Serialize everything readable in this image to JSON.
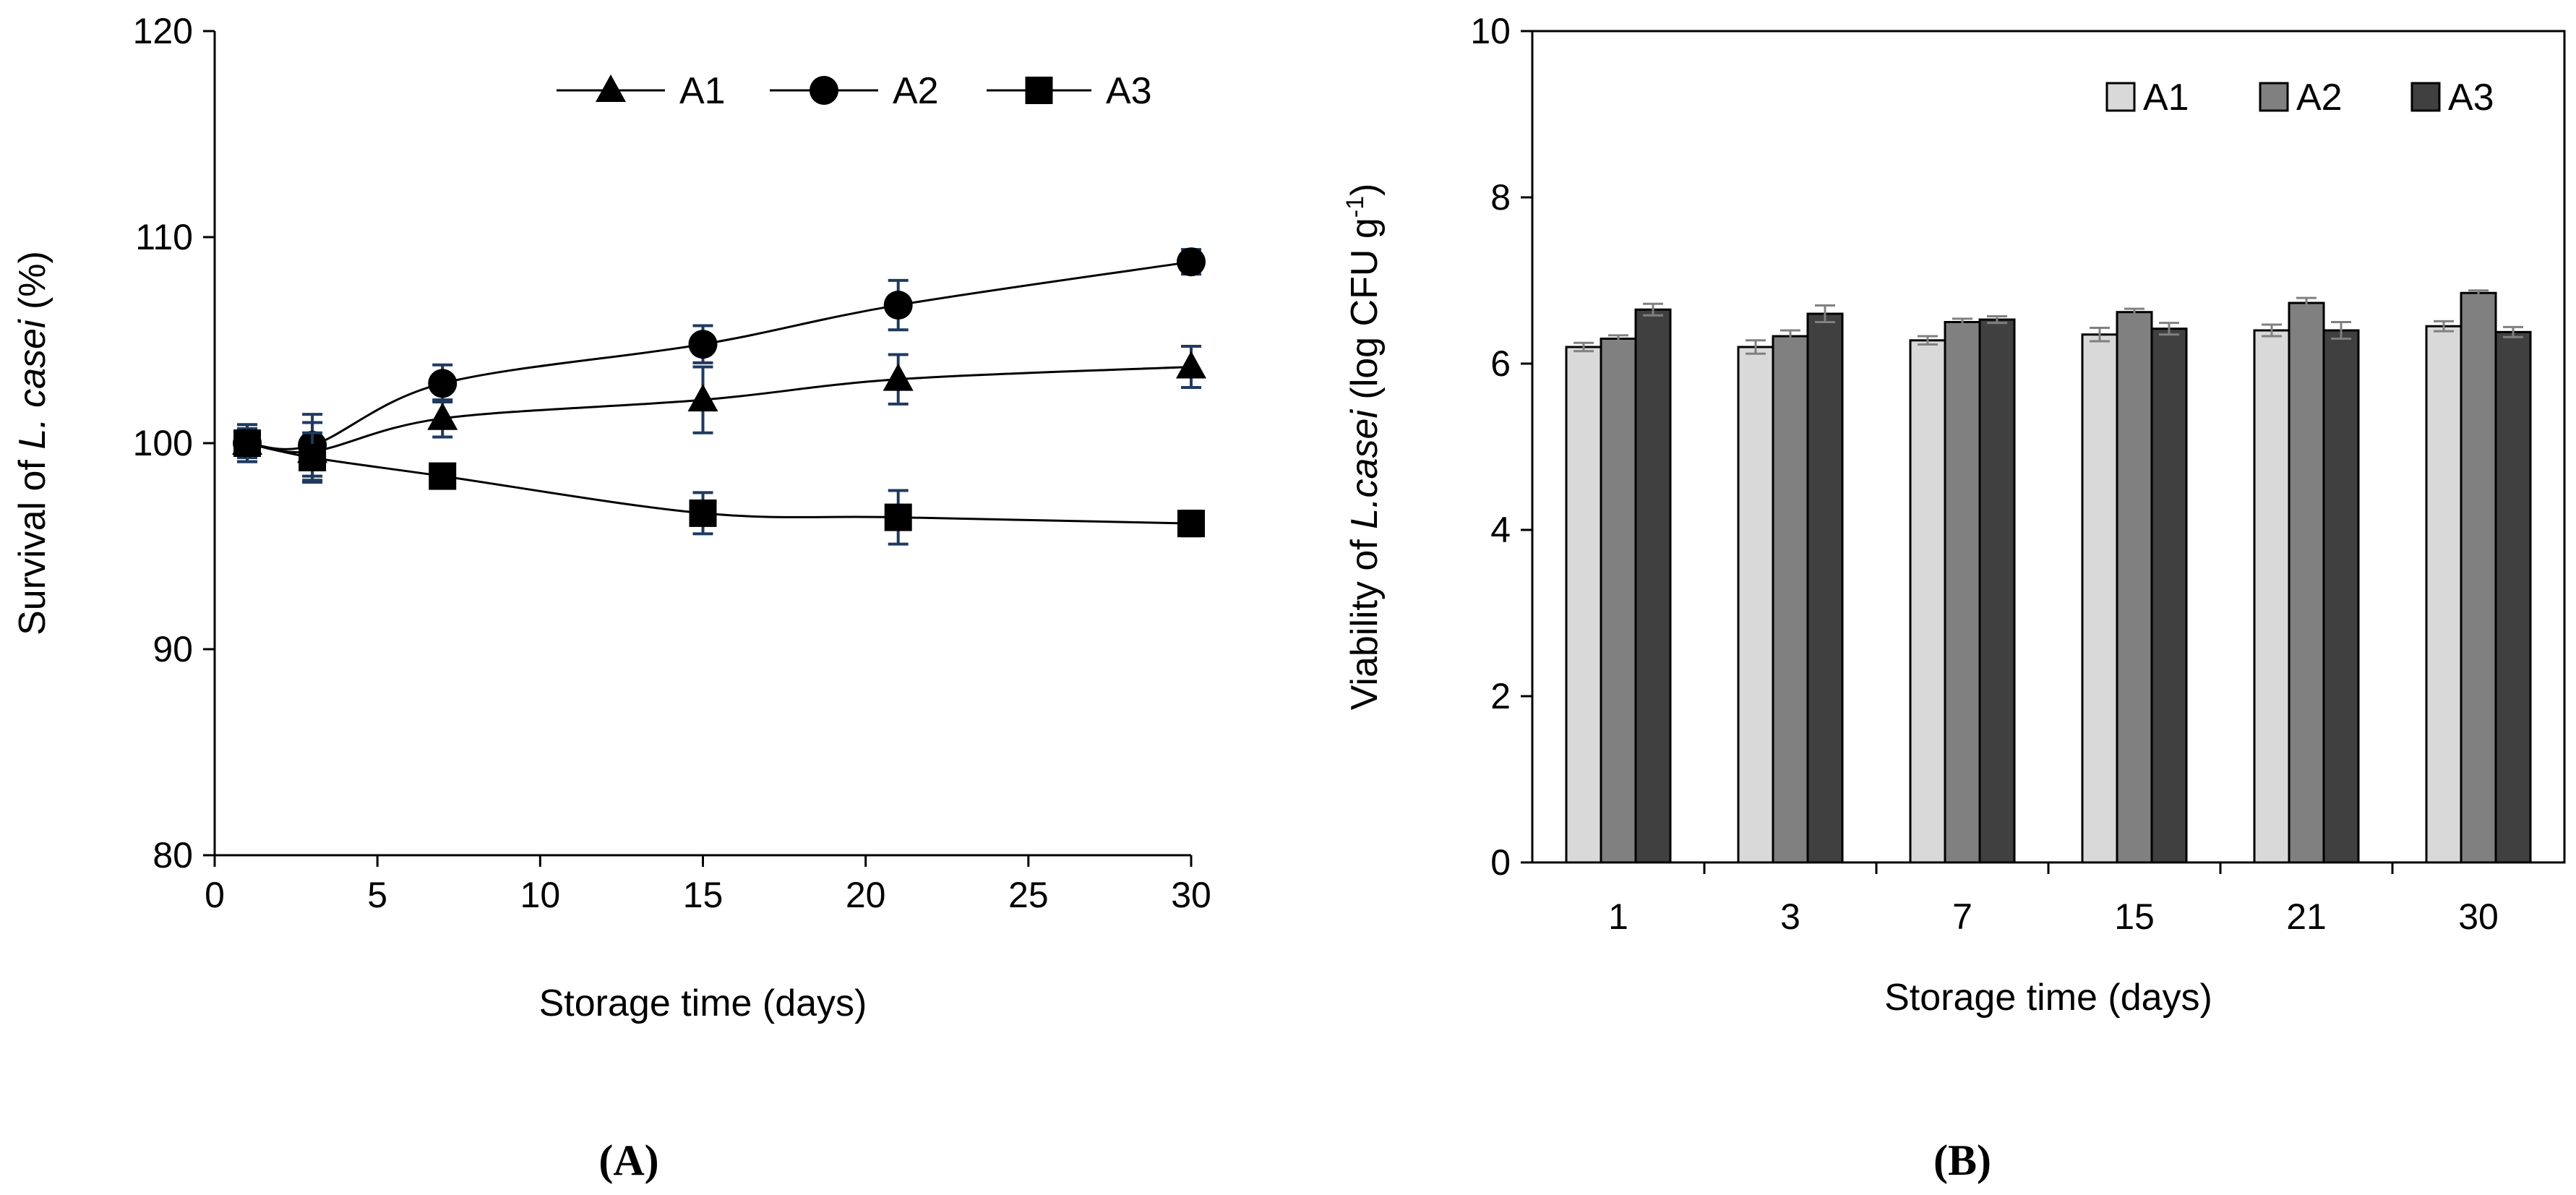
{
  "chart_data": [
    {
      "type": "line",
      "panel_label": "(A)",
      "xlabel": "Storage time (days)",
      "ylabel": {
        "prefix": "Survival of ",
        "italic": "L. casei",
        "suffix": " (%)"
      },
      "xlim": [
        0,
        30
      ],
      "ylim": [
        80,
        120
      ],
      "xticks": [
        0,
        5,
        10,
        15,
        20,
        25,
        30
      ],
      "yticks": [
        80,
        90,
        100,
        110,
        120
      ],
      "legend_position": "top-right",
      "error_bar_color": "#1f3a5f",
      "series": [
        {
          "name": "A1",
          "marker": "triangle",
          "x": [
            1,
            3,
            7,
            15,
            21,
            30
          ],
          "y": [
            100.0,
            99.6,
            101.2,
            102.1,
            103.1,
            103.7
          ],
          "err": [
            0.9,
            1.4,
            0.9,
            1.6,
            1.2,
            1.0
          ]
        },
        {
          "name": "A2",
          "marker": "circle",
          "x": [
            1,
            3,
            7,
            15,
            21,
            30
          ],
          "y": [
            100.0,
            99.9,
            102.9,
            104.8,
            106.7,
            108.8
          ],
          "err": [
            0.7,
            1.5,
            0.9,
            0.9,
            1.2,
            0.6
          ]
        },
        {
          "name": "A3",
          "marker": "square",
          "x": [
            1,
            3,
            7,
            15,
            21,
            30
          ],
          "y": [
            100.0,
            99.3,
            98.4,
            96.6,
            96.4,
            96.1
          ],
          "err": [
            0.9,
            1.2,
            0.5,
            1.0,
            1.3,
            0.6
          ]
        }
      ]
    },
    {
      "type": "bar",
      "panel_label": "(B)",
      "xlabel": "Storage time (days)",
      "ylabel": {
        "prefix": "Viability of ",
        "italic": "L.casei",
        "suffix": "  (log CFU g",
        "sup": "-1",
        "close": ")"
      },
      "categories": [
        "1",
        "3",
        "7",
        "15",
        "21",
        "30"
      ],
      "ylim": [
        0,
        10
      ],
      "yticks": [
        0,
        2,
        4,
        6,
        8,
        10
      ],
      "legend_position": "top-right",
      "series": [
        {
          "name": "A1",
          "color": "#d9d9d9",
          "values": [
            6.2,
            6.2,
            6.28,
            6.35,
            6.4,
            6.45
          ],
          "err": [
            0.05,
            0.08,
            0.05,
            0.08,
            0.07,
            0.06
          ]
        },
        {
          "name": "A2",
          "color": "#808080",
          "values": [
            6.3,
            6.33,
            6.5,
            6.62,
            6.73,
            6.85
          ],
          "err": [
            0.04,
            0.07,
            0.04,
            0.04,
            0.06,
            0.03
          ]
        },
        {
          "name": "A3",
          "color": "#404040",
          "values": [
            6.65,
            6.6,
            6.53,
            6.42,
            6.4,
            6.38
          ],
          "err": [
            0.07,
            0.1,
            0.04,
            0.07,
            0.1,
            0.06
          ]
        }
      ]
    }
  ]
}
